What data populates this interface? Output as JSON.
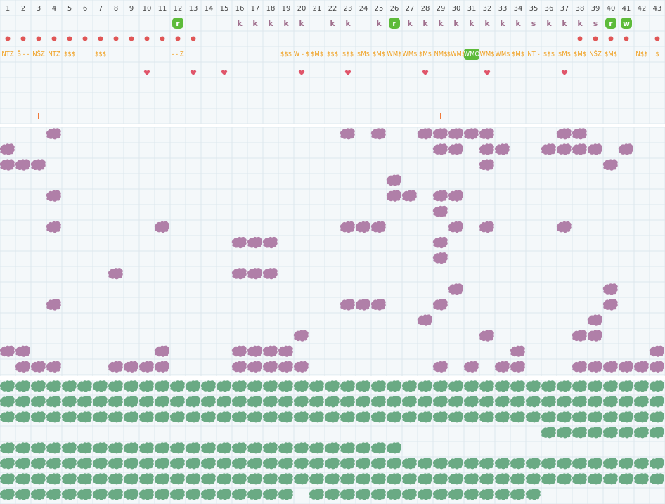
{
  "header": {
    "columns": [
      1,
      2,
      3,
      4,
      5,
      6,
      7,
      8,
      9,
      10,
      11,
      12,
      13,
      14,
      15,
      16,
      17,
      18,
      19,
      20,
      21,
      22,
      23,
      24,
      25,
      26,
      27,
      28,
      29,
      30,
      31,
      32,
      33,
      34,
      35,
      36,
      37,
      38,
      39,
      40,
      41,
      42,
      43
    ]
  },
  "letters": [
    null,
    null,
    null,
    null,
    null,
    null,
    null,
    null,
    null,
    null,
    null,
    "r",
    null,
    null,
    null,
    "k",
    "k",
    "k",
    "k",
    "k",
    null,
    "k",
    "k",
    null,
    "k",
    "r",
    "k",
    "k",
    "k",
    "k",
    "k",
    "k",
    "k",
    "k",
    "s",
    "k",
    "k",
    "k",
    "s",
    "r",
    "w",
    null,
    null
  ],
  "letter_badges": [
    12,
    26,
    40,
    41
  ],
  "dots": [
    1,
    2,
    3,
    4,
    5,
    6,
    7,
    8,
    9,
    10,
    11,
    12,
    13,
    38,
    39,
    40,
    41,
    43
  ],
  "labels": [
    "NTZ",
    "Š - -",
    "NŠZ",
    "NTZ",
    "$$$",
    null,
    "$$$",
    null,
    null,
    null,
    null,
    "- - Z",
    null,
    null,
    null,
    null,
    null,
    null,
    "$$$",
    "W - $",
    "$M$",
    "$$$",
    "$$$",
    "$M$",
    "$M$",
    "WM$",
    "WM$",
    "$M$",
    "NM$",
    "$WM$",
    "WMO",
    "WM$",
    "WM$",
    "$M$",
    "NT -",
    "$$$",
    "$M$",
    "$M$",
    "NŠZ",
    "$M$",
    null,
    "N$$",
    "$"
  ],
  "label_badges": [
    31
  ],
  "hearts": [
    10,
    13,
    15,
    20,
    23,
    28,
    32,
    37
  ],
  "ticks": [
    3,
    29
  ],
  "purple": [
    [
      4,
      23,
      25,
      28,
      29,
      30,
      31,
      32,
      37,
      38
    ],
    [
      1,
      29,
      30,
      32,
      33,
      36,
      37,
      38,
      39,
      41
    ],
    [
      1,
      2,
      3,
      32,
      40
    ],
    [
      26
    ],
    [
      4,
      26,
      27,
      29,
      30
    ],
    [
      29
    ],
    [
      4,
      11,
      23,
      24,
      25,
      30,
      32,
      37
    ],
    [
      16,
      17,
      18,
      29
    ],
    [
      29
    ],
    [
      8,
      16,
      17,
      18
    ],
    [
      30,
      40
    ],
    [
      4,
      23,
      24,
      25,
      29,
      40
    ],
    [
      28,
      39
    ],
    [
      20,
      32,
      38,
      39
    ],
    [
      1,
      2,
      11,
      16,
      17,
      18,
      19,
      34,
      43
    ],
    [
      2,
      3,
      4,
      8,
      9,
      10,
      11,
      16,
      17,
      18,
      19,
      20,
      29,
      31,
      33,
      34,
      38,
      39,
      40,
      41,
      42,
      43
    ]
  ],
  "green": [
    [
      1,
      2,
      3,
      4,
      5,
      6,
      7,
      8,
      9,
      10,
      11,
      12,
      13,
      14,
      15,
      16,
      17,
      18,
      19,
      20,
      21,
      22,
      23,
      24,
      25,
      26,
      27,
      28,
      29,
      30,
      31,
      32,
      33,
      34,
      35,
      36,
      37,
      38,
      39,
      40,
      41,
      42,
      43
    ],
    [
      1,
      2,
      3,
      4,
      5,
      6,
      7,
      8,
      9,
      10,
      11,
      12,
      13,
      14,
      15,
      16,
      17,
      18,
      19,
      20,
      21,
      22,
      23,
      24,
      25,
      26,
      27,
      28,
      29,
      30,
      31,
      32,
      33,
      34,
      35,
      36,
      37,
      38,
      39,
      40,
      41,
      42,
      43
    ],
    [
      1,
      2,
      3,
      4,
      5,
      6,
      7,
      8,
      9,
      10,
      11,
      12,
      13,
      14,
      15,
      16,
      17,
      18,
      19,
      20,
      21,
      22,
      23,
      24,
      25,
      26,
      27,
      28,
      29,
      30,
      31,
      32,
      33,
      34,
      35,
      36,
      37,
      38,
      39,
      40,
      41,
      42,
      43
    ],
    [
      36,
      37,
      38,
      39,
      40,
      41,
      42,
      43
    ],
    [
      1,
      2,
      3,
      4,
      5,
      6,
      7,
      8,
      9,
      10,
      11,
      12,
      13,
      14,
      15,
      16,
      17,
      18,
      19,
      20,
      21,
      22,
      23,
      24,
      25,
      26
    ],
    [
      1,
      2,
      3,
      4,
      5,
      6,
      7,
      8,
      9,
      10,
      11,
      12,
      13,
      14,
      15,
      16,
      17,
      18,
      19,
      20,
      21,
      22,
      23,
      24,
      25,
      26,
      27,
      28,
      29,
      30,
      31,
      32,
      33,
      34,
      35,
      36,
      37,
      38,
      39,
      40,
      41,
      42,
      43
    ],
    [
      1,
      2,
      3,
      4,
      5,
      6,
      7,
      8,
      9,
      10,
      11,
      12,
      13,
      14,
      15,
      16,
      17,
      18,
      19,
      20,
      21,
      22,
      23,
      24,
      25,
      26,
      27,
      28,
      29,
      30,
      31,
      32,
      33,
      34,
      35,
      36,
      37,
      38,
      39,
      40,
      41,
      42,
      43
    ],
    [
      1,
      2,
      3,
      4,
      5,
      6,
      7,
      8,
      9,
      10,
      11,
      12,
      13,
      14,
      15,
      16,
      17,
      18,
      19,
      21,
      22,
      23,
      24,
      25,
      26,
      27,
      28,
      29,
      30,
      31,
      32,
      33,
      34,
      35
    ]
  ]
}
